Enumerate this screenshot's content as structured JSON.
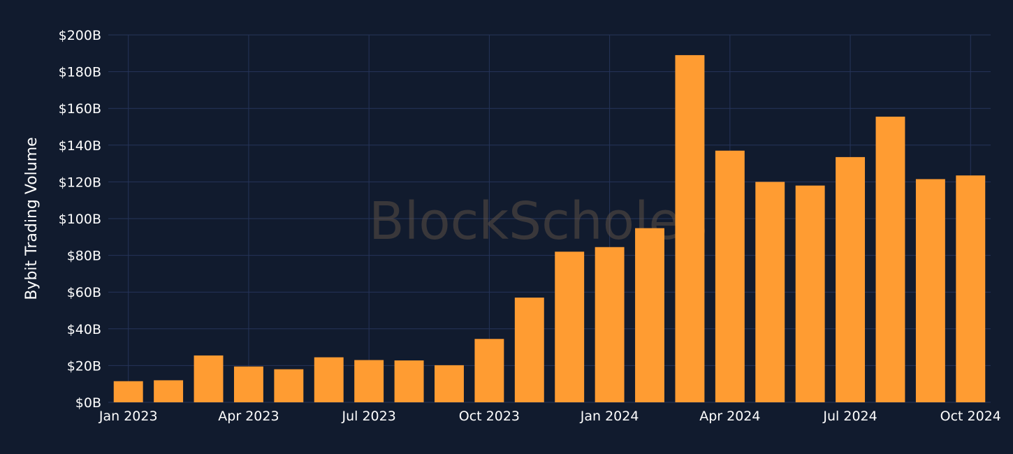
{
  "watermark": "BlockScholes",
  "chart_data": {
    "type": "bar",
    "ylabel": "Bybit Trading Volume",
    "xlabel": "",
    "ylim": [
      0,
      200
    ],
    "y_unit_prefix": "$",
    "y_unit_suffix": "B",
    "y_ticks": [
      0,
      20,
      40,
      60,
      80,
      100,
      120,
      140,
      160,
      180,
      200
    ],
    "y_tick_labels": [
      "$0B",
      "$20B",
      "$40B",
      "$60B",
      "$80B",
      "$100B",
      "$120B",
      "$140B",
      "$160B",
      "$180B",
      "$200B"
    ],
    "x_tick_labels": [
      "Jan 2023",
      "Apr 2023",
      "Jul 2023",
      "Oct 2023",
      "Jan 2024",
      "Apr 2024",
      "Jul 2024",
      "Oct 2024"
    ],
    "x_tick_months": [
      "2023-01",
      "2023-04",
      "2023-07",
      "2023-10",
      "2024-01",
      "2024-04",
      "2024-07",
      "2024-10"
    ],
    "categories": [
      "2023-01",
      "2023-02",
      "2023-03",
      "2023-04",
      "2023-05",
      "2023-06",
      "2023-07",
      "2023-08",
      "2023-09",
      "2023-10",
      "2023-11",
      "2023-12",
      "2024-01",
      "2024-02",
      "2024-03",
      "2024-04",
      "2024-05",
      "2024-06",
      "2024-07",
      "2024-08",
      "2024-09",
      "2024-10"
    ],
    "values": [
      11.5,
      12,
      25.5,
      19.5,
      18,
      24.5,
      23,
      22.8,
      20.2,
      34.5,
      57,
      82,
      84.5,
      94.8,
      189,
      137,
      120,
      118,
      133.5,
      155.5,
      121.5,
      123.5
    ],
    "bar_color": "#ff9c32",
    "grid": true,
    "background_color": "#111b2e",
    "grid_color": "#26345a"
  }
}
